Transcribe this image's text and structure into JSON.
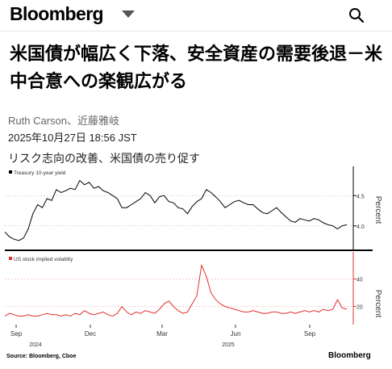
{
  "header": {
    "logo": "Bloomberg",
    "search_icon": "search-icon",
    "menu_icon": "chevron-down-icon"
  },
  "article": {
    "headline": "米国債が幅広く下落、安全資産の需要後退－米中合意への楽観広がる",
    "byline": "Ruth Carson、近藤雅岐",
    "timestamp": "2025年10月27日 18:56 JST"
  },
  "figure": {
    "caption": "リスク志向の改善、米国債の売り促す",
    "source": "Source: Bloomberg, Cboe",
    "brand": "Bloomberg"
  },
  "chart_data": [
    {
      "type": "line",
      "series": [
        {
          "name": "Treasury 10-year yield",
          "color": "#000000",
          "values": [
            3.9,
            3.82,
            3.78,
            3.76,
            3.8,
            3.95,
            4.2,
            4.35,
            4.3,
            4.45,
            4.42,
            4.6,
            4.55,
            4.58,
            4.62,
            4.6,
            4.75,
            4.68,
            4.72,
            4.62,
            4.65,
            4.58,
            4.55,
            4.5,
            4.45,
            4.3,
            4.3,
            4.35,
            4.4,
            4.45,
            4.55,
            4.5,
            4.38,
            4.48,
            4.5,
            4.4,
            4.38,
            4.3,
            4.28,
            4.2,
            4.32,
            4.4,
            4.45,
            4.6,
            4.55,
            4.48,
            4.4,
            4.3,
            4.35,
            4.4,
            4.42,
            4.38,
            4.35,
            4.35,
            4.28,
            4.22,
            4.2,
            4.25,
            4.3,
            4.22,
            4.15,
            4.08,
            4.06,
            4.12,
            4.1,
            4.08,
            4.12,
            4.1,
            4.05,
            4.02,
            4.0,
            3.95,
            4.0,
            4.02
          ]
        }
      ],
      "yticks": [
        4.0,
        4.5
      ],
      "ylabel": "Percent"
    },
    {
      "type": "line",
      "series": [
        {
          "name": "US stock implied volatility",
          "color": "#e03030",
          "values": [
            13,
            15,
            14,
            13,
            13,
            14,
            13,
            13,
            14,
            15,
            14,
            14,
            13,
            14,
            13,
            15,
            14,
            17,
            15,
            14,
            15,
            16,
            14,
            13,
            15,
            20,
            16,
            14,
            16,
            15,
            17,
            16,
            15,
            18,
            22,
            24,
            20,
            17,
            15,
            16,
            22,
            28,
            50,
            42,
            30,
            25,
            22,
            20,
            19,
            18,
            17,
            16,
            16,
            17,
            16,
            15,
            15,
            16,
            16,
            15,
            15,
            16,
            15,
            16,
            17,
            16,
            17,
            16,
            18,
            17,
            18,
            25,
            19,
            18
          ]
        }
      ],
      "yticks": [
        20,
        40
      ],
      "ylabel": "Percent"
    }
  ],
  "xaxis": {
    "ticks": [
      "Sep",
      "Dec",
      "Mar",
      "Jun",
      "Sep"
    ],
    "years": [
      "2024",
      "2025"
    ]
  }
}
